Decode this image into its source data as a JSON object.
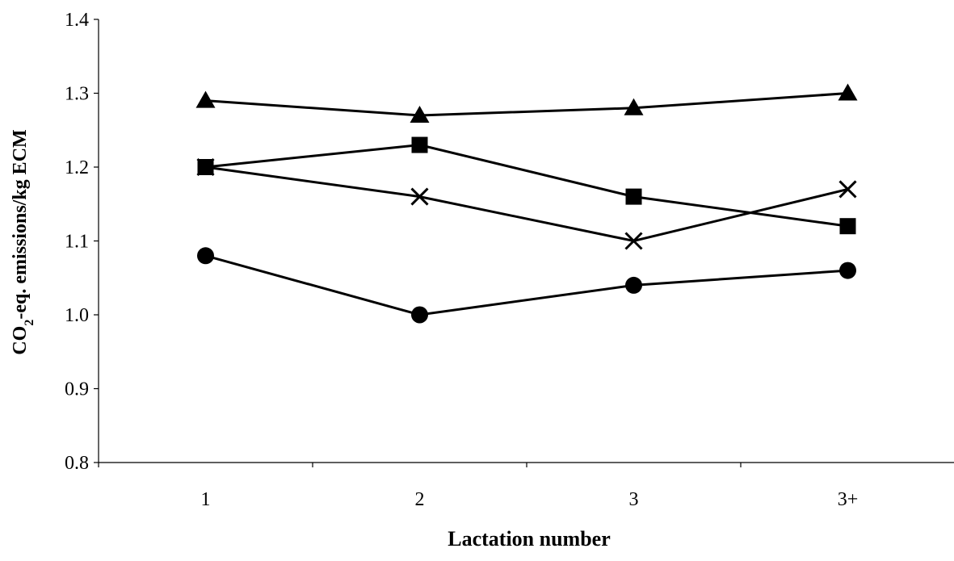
{
  "chart_data": {
    "type": "line",
    "categories": [
      "1",
      "2",
      "3",
      "3+"
    ],
    "xlabel": "Lactation number",
    "ylabel": {
      "prefix": "CO",
      "subscript": "2",
      "suffix": "-eq.  emissions/kg  ECM"
    },
    "ylim": [
      0.8,
      1.4
    ],
    "yticks": [
      "0.8",
      "0.9",
      "1.0",
      "1.1",
      "1.2",
      "1.3",
      "1.4"
    ],
    "grid": false,
    "legend": "none",
    "series": [
      {
        "marker": "triangle",
        "values": [
          1.29,
          1.27,
          1.28,
          1.3
        ]
      },
      {
        "marker": "square",
        "values": [
          1.2,
          1.23,
          1.16,
          1.12
        ]
      },
      {
        "marker": "x",
        "values": [
          1.2,
          1.16,
          1.1,
          1.17
        ]
      },
      {
        "marker": "circle",
        "values": [
          1.08,
          1.0,
          1.04,
          1.06
        ]
      }
    ],
    "colors": {
      "line": "#000000",
      "marker": "#000000",
      "background": "#ffffff"
    }
  }
}
